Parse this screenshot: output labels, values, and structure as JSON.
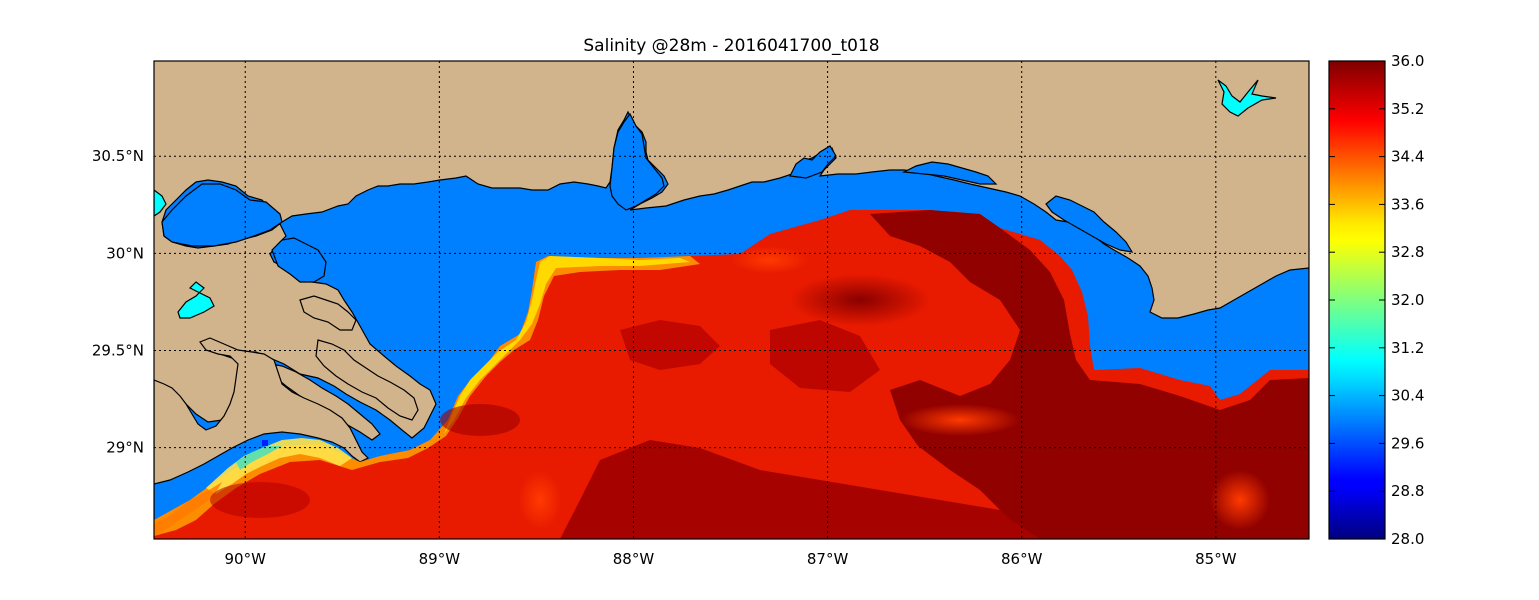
{
  "title": "Salinity @28m - 2016041700_t018",
  "x_ticks": [
    "90°W",
    "89°W",
    "88°W",
    "87°W",
    "86°W",
    "85°W"
  ],
  "y_ticks": [
    "30.5°N",
    "30°N",
    "29.5°N",
    "29°N"
  ],
  "colorbar_ticks": [
    "36.0",
    "35.2",
    "34.4",
    "33.6",
    "32.8",
    "32.0",
    "31.2",
    "30.4",
    "29.6",
    "28.8",
    "28.0"
  ],
  "colors": {
    "land": "#d2b48c",
    "water": "#0080ff",
    "lake": "#00ffff"
  },
  "map": {
    "lon_range": [
      -90.47,
      -84.52
    ],
    "lat_range": [
      28.53,
      30.99
    ]
  }
}
